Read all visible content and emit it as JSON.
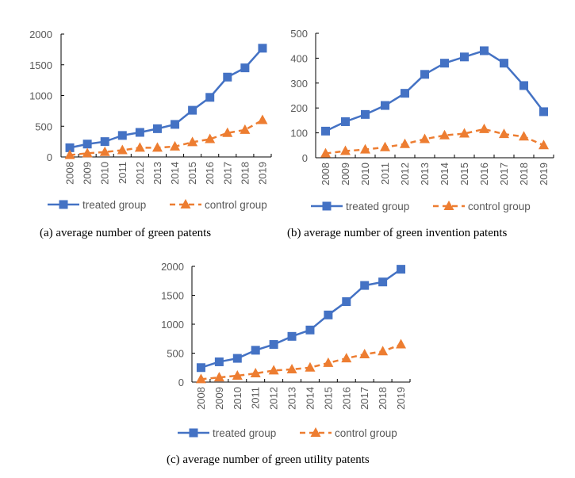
{
  "figure": {
    "panels": [
      "a",
      "b",
      "c"
    ]
  },
  "colors": {
    "treated": "#4472C4",
    "control": "#ED7D31",
    "axis": "#595959"
  },
  "chart_data": [
    {
      "id": "a",
      "type": "line",
      "title": "(a) average number of green patents",
      "xlabel": "",
      "ylabel": "",
      "categories": [
        "2008",
        "2009",
        "2010",
        "2011",
        "2012",
        "2013",
        "2014",
        "2015",
        "2016",
        "2017",
        "2018",
        "2019"
      ],
      "ylim": [
        0,
        2000
      ],
      "yticks": [
        0,
        500,
        1000,
        1500,
        2000
      ],
      "ytick_labels": [
        "0",
        "500",
        "1000",
        "1500",
        "2000"
      ],
      "grid": false,
      "legend_position": "bottom",
      "series": [
        {
          "name": "treated group",
          "style": "solid",
          "marker": "square",
          "values": [
            150,
            210,
            250,
            350,
            400,
            460,
            530,
            760,
            970,
            1300,
            1450,
            1770
          ]
        },
        {
          "name": "control group",
          "style": "dashed",
          "marker": "triangle",
          "values": [
            30,
            60,
            80,
            110,
            150,
            150,
            170,
            240,
            290,
            390,
            440,
            600
          ]
        }
      ]
    },
    {
      "id": "b",
      "type": "line",
      "title": "(b) average number of green invention patents",
      "xlabel": "",
      "ylabel": "",
      "categories": [
        "2008",
        "2009",
        "2010",
        "2011",
        "2012",
        "2013",
        "2014",
        "2015",
        "2016",
        "2017",
        "2018",
        "2019"
      ],
      "ylim": [
        0,
        500
      ],
      "yticks": [
        0,
        100,
        200,
        300,
        400,
        500
      ],
      "ytick_labels": [
        "0",
        "100",
        "200",
        "300",
        "400",
        "500"
      ],
      "grid": false,
      "legend_position": "bottom",
      "series": [
        {
          "name": "treated group",
          "style": "solid",
          "marker": "square",
          "values": [
            107,
            145,
            174,
            210,
            259,
            335,
            380,
            405,
            430,
            380,
            290,
            185
          ]
        },
        {
          "name": "control group",
          "style": "dashed",
          "marker": "triangle",
          "values": [
            17,
            27,
            33,
            42,
            55,
            75,
            90,
            97,
            115,
            95,
            85,
            50
          ]
        }
      ]
    },
    {
      "id": "c",
      "type": "line",
      "title": "(c) average number of green utility patents",
      "xlabel": "",
      "ylabel": "",
      "categories": [
        "2008",
        "2009",
        "2010",
        "2011",
        "2012",
        "2013",
        "2014",
        "2015",
        "2016",
        "2017",
        "2018",
        "2019"
      ],
      "ylim": [
        0,
        2000
      ],
      "yticks": [
        0,
        500,
        1000,
        1500,
        2000
      ],
      "ytick_labels": [
        "0",
        "500",
        "1000",
        "1500",
        "2000"
      ],
      "grid": false,
      "legend_position": "bottom",
      "series": [
        {
          "name": "treated group",
          "style": "solid",
          "marker": "square",
          "values": [
            250,
            350,
            410,
            550,
            650,
            790,
            900,
            1160,
            1390,
            1670,
            1730,
            1950
          ]
        },
        {
          "name": "control group",
          "style": "dashed",
          "marker": "triangle",
          "values": [
            50,
            80,
            110,
            150,
            200,
            220,
            250,
            330,
            410,
            480,
            530,
            650
          ]
        }
      ]
    }
  ]
}
